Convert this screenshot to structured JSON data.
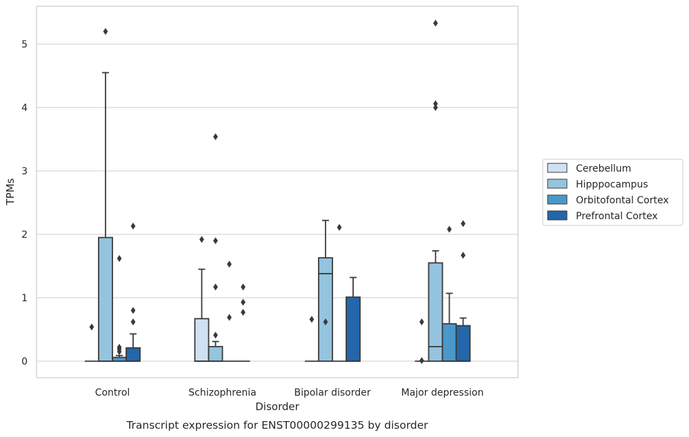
{
  "chart_data": {
    "type": "box",
    "title": "",
    "caption": "Transcript expression for ENST00000299135 by disorder",
    "xlabel": "Disorder",
    "ylabel": "TPMs",
    "ylim": [
      -0.26,
      5.6
    ],
    "yticks": [
      0,
      1,
      2,
      3,
      4,
      5
    ],
    "grid": "horizontal",
    "legend_position": "right",
    "categories": [
      "Control",
      "Schizophrenia",
      "Bipolar disorder",
      "Major depression"
    ],
    "series": [
      {
        "name": "Cerebellum",
        "color": "#d0e1f2",
        "boxes": [
          {
            "q1": 0,
            "median": 0,
            "q3": 0,
            "whisker_low": 0,
            "whisker_high": 0,
            "outliers": [
              0.54
            ]
          },
          {
            "q1": 0,
            "median": 0,
            "q3": 0.67,
            "whisker_low": 0,
            "whisker_high": 1.45,
            "outliers": [
              1.92
            ]
          },
          {
            "q1": 0,
            "median": 0,
            "q3": 0,
            "whisker_low": 0,
            "whisker_high": 0,
            "outliers": [
              0.66
            ]
          },
          {
            "q1": 0,
            "median": 0,
            "q3": 0,
            "whisker_low": 0,
            "whisker_high": 0,
            "outliers": [
              0.62,
              0.01
            ]
          }
        ]
      },
      {
        "name": "Hipppocampus",
        "color": "#94c4df",
        "boxes": [
          {
            "q1": 0,
            "median": 0,
            "q3": 1.95,
            "whisker_low": 0,
            "whisker_high": 4.55,
            "outliers": [
              5.2
            ]
          },
          {
            "q1": 0,
            "median": 0,
            "q3": 0.23,
            "whisker_low": 0,
            "whisker_high": 0.31,
            "outliers": [
              3.54,
              1.9,
              1.17,
              0.41
            ]
          },
          {
            "q1": 0,
            "median": 1.38,
            "q3": 1.63,
            "whisker_low": 0,
            "whisker_high": 2.22,
            "outliers": [
              0.62
            ]
          },
          {
            "q1": 0,
            "median": 0.23,
            "q3": 1.55,
            "whisker_low": 0,
            "whisker_high": 1.74,
            "outliers": [
              5.33,
              4.06,
              4.0
            ]
          }
        ]
      },
      {
        "name": "Orbitofontal Cortex",
        "color": "#4a98c9",
        "boxes": [
          {
            "q1": 0,
            "median": 0,
            "q3": 0.06,
            "whisker_low": 0,
            "whisker_high": 0.09,
            "outliers": [
              1.62,
              0.22,
              0.19,
              0.15
            ]
          },
          {
            "q1": 0,
            "median": 0,
            "q3": 0,
            "whisker_low": 0,
            "whisker_high": 0,
            "outliers": [
              1.53,
              0.69
            ]
          },
          {
            "q1": 0,
            "median": 0,
            "q3": 0,
            "whisker_low": 0,
            "whisker_high": 0,
            "outliers": [
              2.11
            ]
          },
          {
            "q1": 0,
            "median": 0,
            "q3": 0.59,
            "whisker_low": 0,
            "whisker_high": 1.07,
            "outliers": [
              2.08
            ]
          }
        ]
      },
      {
        "name": "Prefrontal Cortex",
        "color": "#2466a9",
        "boxes": [
          {
            "q1": 0,
            "median": 0,
            "q3": 0.21,
            "whisker_low": 0,
            "whisker_high": 0.43,
            "outliers": [
              2.13,
              0.8,
              0.62
            ]
          },
          {
            "q1": 0,
            "median": 0,
            "q3": 0,
            "whisker_low": 0,
            "whisker_high": 0,
            "outliers": [
              1.17,
              0.93,
              0.77
            ]
          },
          {
            "q1": 0,
            "median": 0,
            "q3": 1.01,
            "whisker_low": 0,
            "whisker_high": 1.32,
            "outliers": []
          },
          {
            "q1": 0,
            "median": 0,
            "q3": 0.56,
            "whisker_low": 0,
            "whisker_high": 0.68,
            "outliers": [
              2.17,
              1.67
            ]
          }
        ]
      }
    ]
  }
}
